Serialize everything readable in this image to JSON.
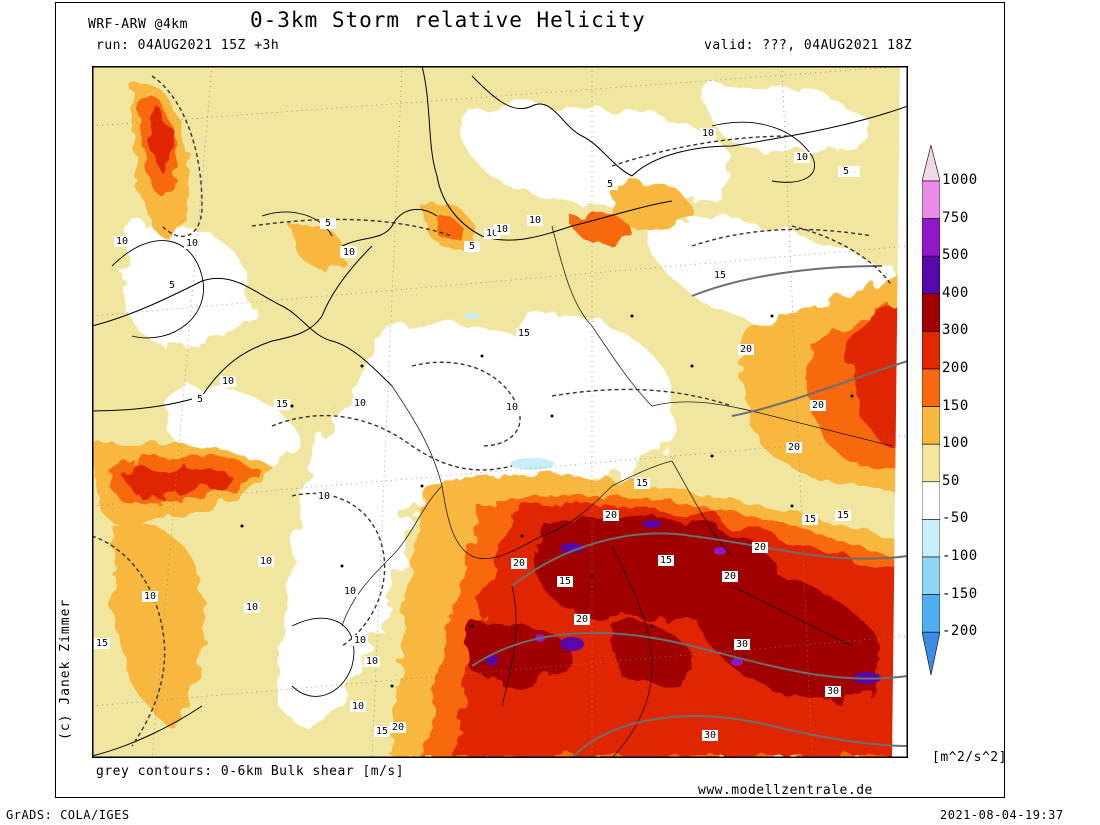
{
  "header": {
    "model": "WRF-ARW @4km",
    "title": "0-3km Storm relative Helicity",
    "run": "run: 04AUG2021 15Z +3h",
    "valid": "valid: ???, 04AUG2021 18Z"
  },
  "footer": {
    "contours_note": "grey contours: 0-6km Bulk shear [m/s]",
    "website": "www.modellzentrale.de",
    "grads": "GrADS: COLA/IGES",
    "timestamp": "2021-08-04-19:37"
  },
  "credit": "(c) Janek Zimmer",
  "colorbar": {
    "unit": "[m^2/s^2]",
    "levels": [
      {
        "label": "1000",
        "color": "#f0d8e8"
      },
      {
        "label": "750",
        "color": "#e88ce8"
      },
      {
        "label": "500",
        "color": "#9018c8"
      },
      {
        "label": "400",
        "color": "#5808a8"
      },
      {
        "label": "300",
        "color": "#a00000"
      },
      {
        "label": "200",
        "color": "#e02800"
      },
      {
        "label": "150",
        "color": "#f86810"
      },
      {
        "label": "100",
        "color": "#f8b840"
      },
      {
        "label": "50",
        "color": "#f0e6a0"
      },
      {
        "label": "-50",
        "color": "#ffffff"
      },
      {
        "label": "-100",
        "color": "#c8eefa"
      },
      {
        "label": "-150",
        "color": "#90d6f4"
      },
      {
        "label": "-200",
        "color": "#50aef0"
      }
    ],
    "bottom_color": "#3c8ce6"
  },
  "contour_labels": [
    "10",
    "10",
    "5",
    "5",
    "10",
    "10",
    "5",
    "10",
    "10",
    "5",
    "10",
    "5",
    "5",
    "10",
    "10",
    "5",
    "15",
    "10",
    "10",
    "10",
    "15",
    "15",
    "20",
    "20",
    "20",
    "15",
    "15",
    "20",
    "15",
    "20",
    "20",
    "15",
    "20",
    "20",
    "30",
    "30",
    "30",
    "10",
    "10",
    "10",
    "10",
    "10",
    "10",
    "15",
    "15",
    "15",
    "20",
    "10",
    "10"
  ]
}
